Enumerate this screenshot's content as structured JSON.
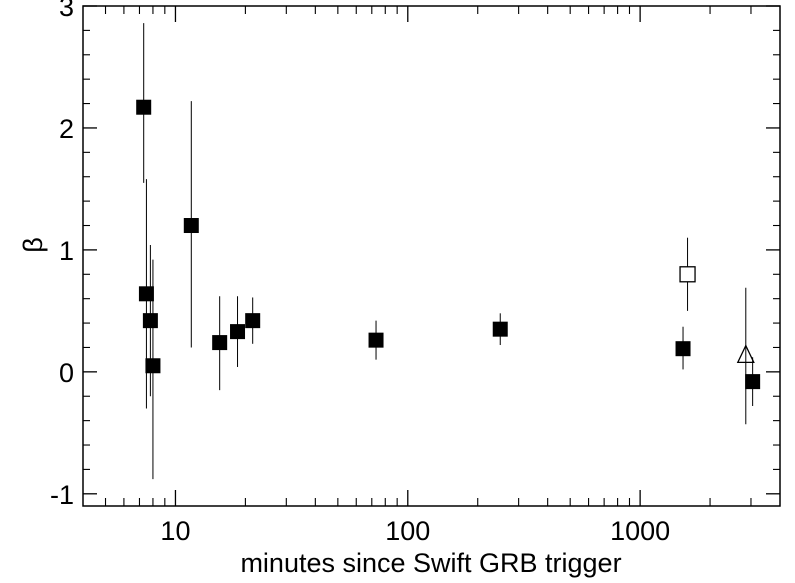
{
  "chart_data": {
    "type": "scatter",
    "title": "",
    "xlabel": "minutes since Swift GRB trigger",
    "ylabel": "β",
    "x_scale": "log",
    "xlim": [
      4,
      4000
    ],
    "ylim": [
      -1.1,
      3.0
    ],
    "x_ticks": [
      10,
      100,
      1000
    ],
    "x_tick_labels": [
      "10",
      "100",
      "1000"
    ],
    "y_ticks": [
      -1,
      0,
      1,
      2,
      3
    ],
    "y_tick_labels": [
      "-1",
      "0",
      "1",
      "2",
      "3"
    ],
    "grid": false,
    "legend": "none",
    "series": [
      {
        "marker": "filled-square",
        "points": [
          {
            "x": 7.3,
            "y": 2.17,
            "err_lo": 0.62,
            "err_hi": 0.69
          },
          {
            "x": 7.5,
            "y": 0.64,
            "err_lo": 0.94,
            "err_hi": 0.94
          },
          {
            "x": 7.8,
            "y": 0.42,
            "err_lo": 0.62,
            "err_hi": 0.62
          },
          {
            "x": 8.0,
            "y": 0.05,
            "err_lo": 0.93,
            "err_hi": 0.87
          },
          {
            "x": 11.7,
            "y": 1.2,
            "err_lo": 1.0,
            "err_hi": 1.02
          },
          {
            "x": 15.5,
            "y": 0.24,
            "err_lo": 0.39,
            "err_hi": 0.38
          },
          {
            "x": 18.5,
            "y": 0.33,
            "err_lo": 0.29,
            "err_hi": 0.29
          },
          {
            "x": 21.5,
            "y": 0.42,
            "err_lo": 0.19,
            "err_hi": 0.19
          },
          {
            "x": 73,
            "y": 0.26,
            "err_lo": 0.16,
            "err_hi": 0.16
          },
          {
            "x": 250,
            "y": 0.35,
            "err_lo": 0.13,
            "err_hi": 0.13
          },
          {
            "x": 1530,
            "y": 0.19,
            "err_lo": 0.17,
            "err_hi": 0.18
          },
          {
            "x": 3050,
            "y": -0.08,
            "err_lo": 0.2,
            "err_hi": 0.2
          }
        ]
      },
      {
        "marker": "open-square",
        "points": [
          {
            "x": 1600,
            "y": 0.8,
            "err_lo": 0.3,
            "err_hi": 0.3
          }
        ]
      },
      {
        "marker": "open-triangle",
        "points": [
          {
            "x": 2850,
            "y": 0.13,
            "err_lo": 0.56,
            "err_hi": 0.56
          }
        ]
      }
    ]
  }
}
